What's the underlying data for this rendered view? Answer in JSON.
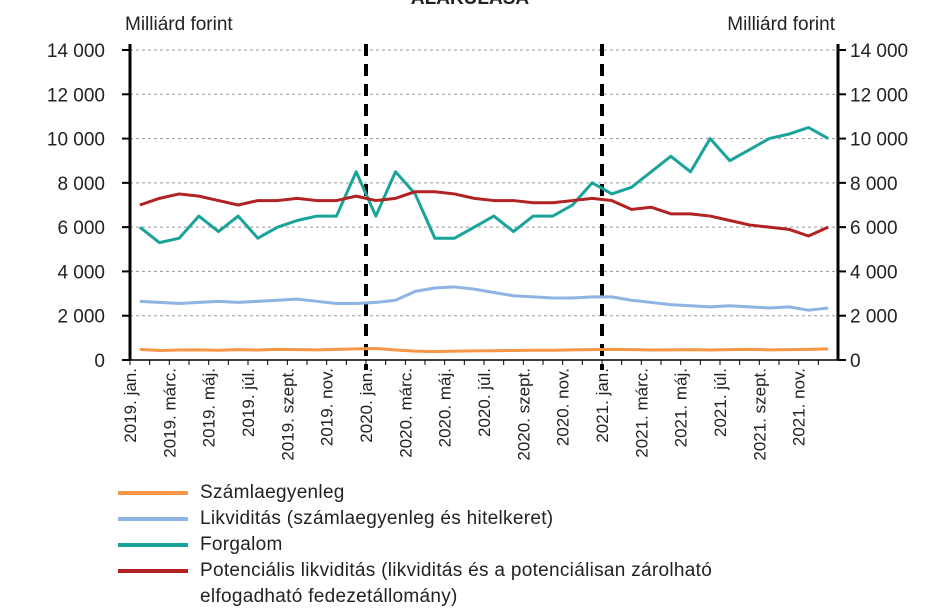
{
  "chart_data": {
    "type": "line",
    "title": "ALAKULÁSA",
    "ylabel": "Milliárd forint",
    "y2label": "Milliárd forint",
    "categories": [
      "2019. jan.",
      null,
      "2019. márc.",
      null,
      "2019. máj.",
      null,
      "2019. júl.",
      null,
      "2019. szept.",
      null,
      "2019. nov.",
      null,
      "2020. jan.",
      null,
      "2020. márc.",
      null,
      "2020. máj.",
      null,
      "2020. júl.",
      null,
      "2020. szept.",
      null,
      "2020. nov.",
      null,
      "2021. jan.",
      null,
      "2021. márc.",
      null,
      "2021. máj.",
      null,
      "2021. júl.",
      null,
      "2021. szept.",
      null,
      "2021. nov.",
      null
    ],
    "ylim": [
      0,
      14000
    ],
    "y2lim": [
      0,
      14000
    ],
    "yticks": [
      0,
      {
        "value": 2000,
        "label": "2 000"
      },
      {
        "value": 4000,
        "label": "4 000"
      },
      {
        "value": 6000,
        "label": "6 000"
      },
      {
        "value": 8000,
        "label": "8 000"
      },
      {
        "value": 10000,
        "label": "10 000"
      },
      {
        "value": 12000,
        "label": "12 000"
      },
      {
        "value": 14000,
        "label": "14 000"
      }
    ],
    "y2ticks": [
      0,
      {
        "value": 2000,
        "label": "2 000"
      },
      {
        "value": 4000,
        "label": "4 000"
      },
      {
        "value": 6000,
        "label": "6 000"
      },
      {
        "value": 8000,
        "label": "8 000"
      },
      {
        "value": 10000,
        "label": "10 000"
      },
      {
        "value": 12000,
        "label": "12 000"
      },
      {
        "value": 14000,
        "label": "14 000"
      }
    ],
    "series": [
      {
        "name": "Számlaegyenleg",
        "color": "#f79646",
        "values": [
          480,
          430,
          450,
          460,
          440,
          470,
          450,
          480,
          470,
          460,
          480,
          500,
          520,
          450,
          400,
          380,
          400,
          410,
          420,
          430,
          440,
          440,
          460,
          470,
          480,
          470,
          450,
          460,
          470,
          450,
          470,
          480,
          460,
          470,
          480,
          500
        ]
      },
      {
        "name": "Likviditás (számlaegyenleg és hitelkeret)",
        "color": "#8db4e2",
        "values": [
          2650,
          2600,
          2550,
          2600,
          2650,
          2600,
          2650,
          2700,
          2750,
          2650,
          2550,
          2550,
          2600,
          2700,
          3100,
          3250,
          3300,
          3200,
          3050,
          2900,
          2850,
          2800,
          2800,
          2850,
          2850,
          2700,
          2600,
          2500,
          2450,
          2400,
          2450,
          2400,
          2350,
          2400,
          2250,
          2350
        ]
      },
      {
        "name": "Forgalom",
        "color": "#1aa39a",
        "values": [
          6000,
          5300,
          5500,
          6500,
          5800,
          6500,
          5500,
          6000,
          6300,
          6500,
          6500,
          8500,
          6500,
          8500,
          7500,
          5500,
          5500,
          6000,
          6500,
          5800,
          6500,
          6500,
          7000,
          8000,
          7500,
          7800,
          8500,
          9200,
          8500,
          10000,
          9000,
          9500,
          10000,
          10200,
          10500,
          10000
        ]
      },
      {
        "name": "Potenciális likviditás (likviditás és a potenciálisan zárolható elfogadható fedezetállomány)",
        "color": "#b22222",
        "values": [
          7000,
          7300,
          7500,
          7400,
          7200,
          7000,
          7200,
          7200,
          7300,
          7200,
          7200,
          7400,
          7200,
          7300,
          7600,
          7600,
          7500,
          7300,
          7200,
          7200,
          7100,
          7100,
          7200,
          7300,
          7200,
          6800,
          6900,
          6600,
          6600,
          6500,
          6300,
          6100,
          6000,
          5900,
          5600,
          6000
        ]
      }
    ]
  }
}
